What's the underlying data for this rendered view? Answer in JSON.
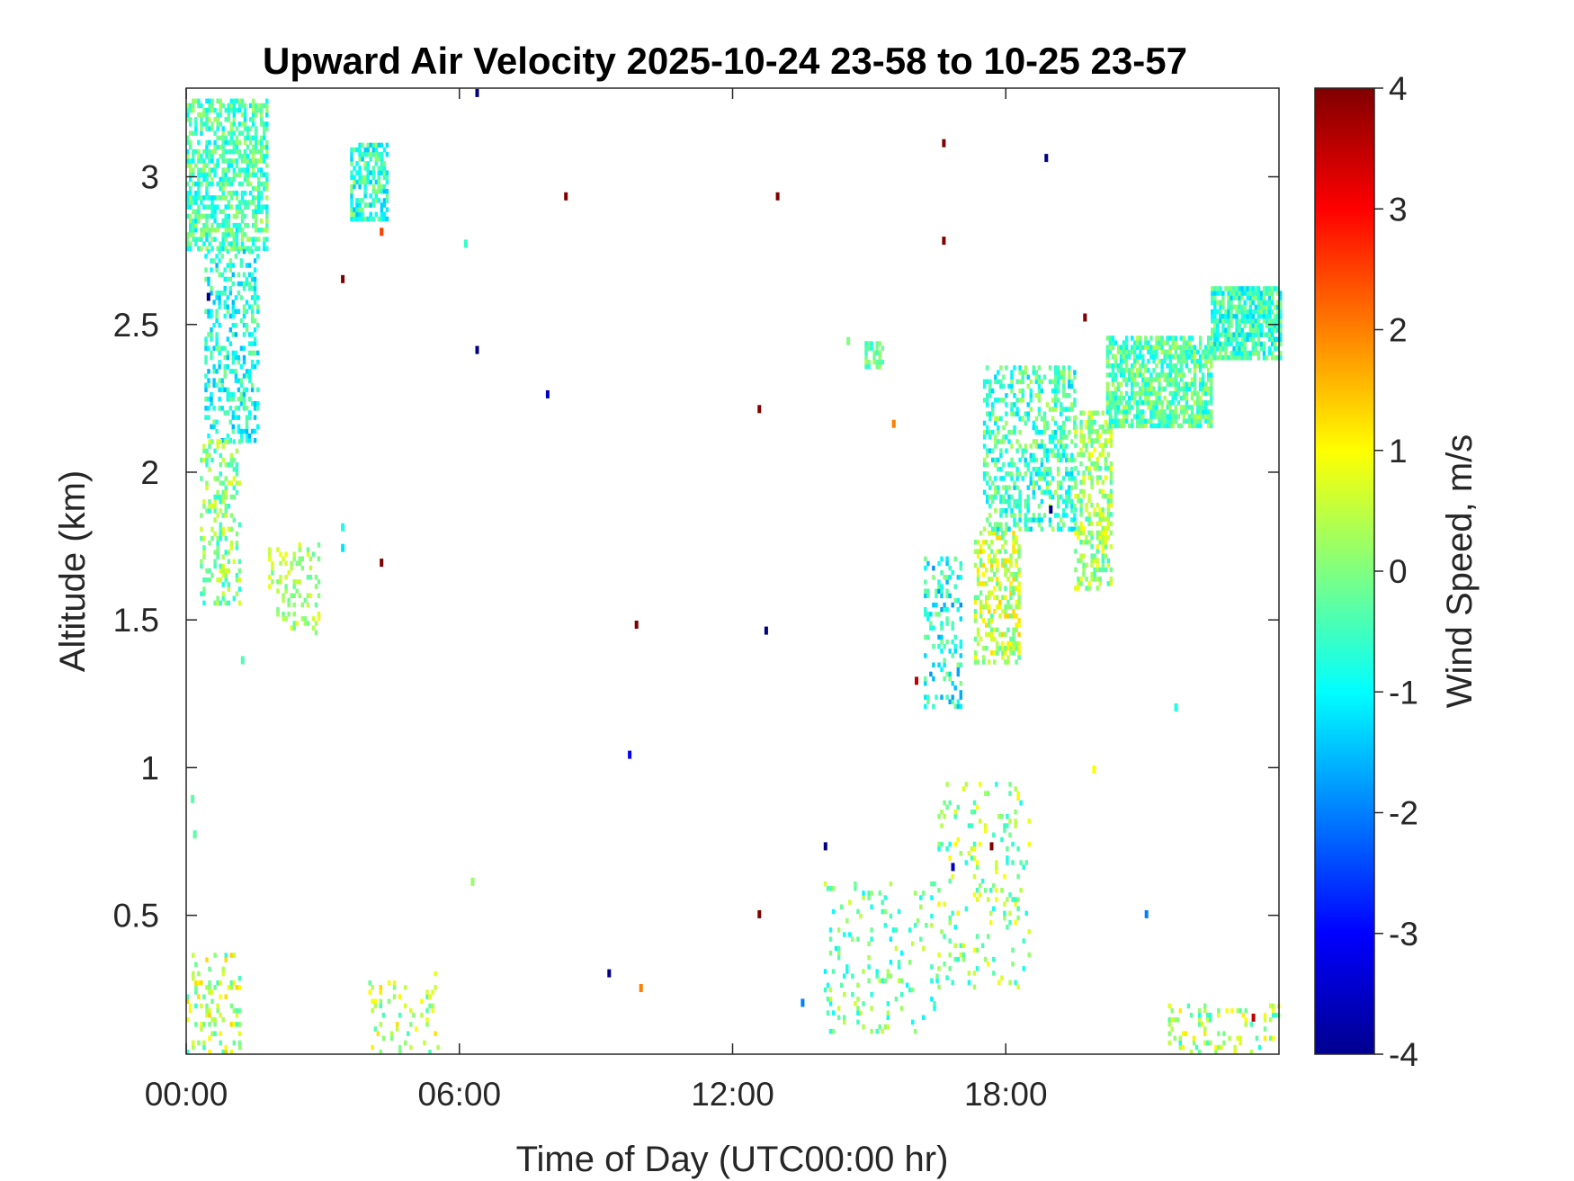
{
  "chart_data": {
    "type": "heatmap",
    "title": "Upward Air Velocity 2025-10-24 23-58 to 10-25 23-57",
    "xlabel": "Time of Day (UTC00:00 hr)",
    "ylabel": "Altitude (km)",
    "xlim": [
      0,
      24
    ],
    "ylim": [
      0.03,
      3.3
    ],
    "xticks": [
      0,
      6,
      12,
      18
    ],
    "xtick_labels": [
      "00:00",
      "06:00",
      "12:00",
      "18:00"
    ],
    "yticks": [
      0.5,
      1,
      1.5,
      2,
      2.5,
      3
    ],
    "ytick_labels": [
      "0.5",
      "1",
      "1.5",
      "2",
      "2.5",
      "3"
    ],
    "colorbar": {
      "label": "Wind Speed, m/s",
      "colormap": "jet",
      "clim": [
        -4,
        4
      ],
      "ticks": [
        -4,
        -3,
        -2,
        -1,
        0,
        1,
        2,
        3,
        4
      ],
      "tick_labels": [
        "-4",
        "-3",
        "-2",
        "-1",
        "0",
        "1",
        "2",
        "3",
        "4"
      ]
    },
    "regions": [
      {
        "name": "early-upper-cloud",
        "t": [
          0.0,
          1.8
        ],
        "z": [
          2.75,
          3.25
        ],
        "mean": -0.4,
        "spread": 0.8,
        "density": 0.6
      },
      {
        "name": "early-column",
        "t": [
          0.4,
          1.6
        ],
        "z": [
          2.1,
          2.75
        ],
        "mean": -0.8,
        "spread": 0.8,
        "density": 0.35
      },
      {
        "name": "early-low-column",
        "t": [
          0.3,
          1.2
        ],
        "z": [
          1.55,
          2.1
        ],
        "mean": 0.0,
        "spread": 0.8,
        "density": 0.3
      },
      {
        "name": "early-trail",
        "t": [
          1.8,
          2.9
        ],
        "z": [
          1.45,
          1.75
        ],
        "mean": 0.3,
        "spread": 0.6,
        "density": 0.2
      },
      {
        "name": "cell-0400",
        "t": [
          3.6,
          4.4
        ],
        "z": [
          2.85,
          3.1
        ],
        "mean": -0.6,
        "spread": 0.9,
        "density": 0.6
      },
      {
        "name": "cell-1500",
        "t": [
          14.9,
          15.3
        ],
        "z": [
          2.35,
          2.43
        ],
        "mean": -0.2,
        "spread": 0.6,
        "density": 0.6
      },
      {
        "name": "rising-1630",
        "t": [
          16.2,
          17.0
        ],
        "z": [
          1.2,
          1.7
        ],
        "mean": -0.9,
        "spread": 1.0,
        "density": 0.3
      },
      {
        "name": "rising-1745",
        "t": [
          17.3,
          18.3
        ],
        "z": [
          1.35,
          1.8
        ],
        "mean": 0.5,
        "spread": 0.9,
        "density": 0.45
      },
      {
        "name": "rising-1830",
        "t": [
          17.5,
          19.5
        ],
        "z": [
          1.8,
          2.35
        ],
        "mean": -0.5,
        "spread": 0.9,
        "density": 0.4
      },
      {
        "name": "rising-2000",
        "t": [
          19.5,
          20.3
        ],
        "z": [
          1.6,
          2.2
        ],
        "mean": 0.2,
        "spread": 0.8,
        "density": 0.45
      },
      {
        "name": "upper-layer-2030",
        "t": [
          20.2,
          22.5
        ],
        "z": [
          2.15,
          2.45
        ],
        "mean": -0.3,
        "spread": 0.8,
        "density": 0.7
      },
      {
        "name": "upper-layer-2330",
        "t": [
          22.5,
          24.0
        ],
        "z": [
          2.38,
          2.62
        ],
        "mean": -0.6,
        "spread": 0.8,
        "density": 0.8
      },
      {
        "name": "surface-layer-1",
        "t": [
          0.0,
          1.2
        ],
        "z": [
          0.03,
          0.36
        ],
        "mean": 0.4,
        "spread": 1.0,
        "density": 0.2
      },
      {
        "name": "surface-layer-2",
        "t": [
          4.0,
          5.5
        ],
        "z": [
          0.03,
          0.3
        ],
        "mean": 0.3,
        "spread": 1.0,
        "density": 0.1
      },
      {
        "name": "surface-layer-3",
        "t": [
          14.0,
          16.5
        ],
        "z": [
          0.1,
          0.6
        ],
        "mean": -0.2,
        "spread": 0.9,
        "density": 0.12
      },
      {
        "name": "surface-layer-4",
        "t": [
          16.5,
          18.5
        ],
        "z": [
          0.25,
          0.95
        ],
        "mean": 0.1,
        "spread": 1.0,
        "density": 0.1
      },
      {
        "name": "surface-layer-5",
        "t": [
          21.5,
          24.0
        ],
        "z": [
          0.03,
          0.2
        ],
        "mean": 0.2,
        "spread": 1.0,
        "density": 0.2
      }
    ],
    "points": [
      {
        "t": 6.35,
        "z": 3.27,
        "v": -4.0
      },
      {
        "t": 8.3,
        "z": 2.92,
        "v": 4.0
      },
      {
        "t": 12.95,
        "z": 2.92,
        "v": 4.0
      },
      {
        "t": 16.6,
        "z": 3.1,
        "v": 4.0
      },
      {
        "t": 18.85,
        "z": 3.05,
        "v": -4.0
      },
      {
        "t": 16.6,
        "z": 2.77,
        "v": 4.0
      },
      {
        "t": 3.4,
        "z": 2.64,
        "v": 4.0
      },
      {
        "t": 0.45,
        "z": 2.58,
        "v": -4.0
      },
      {
        "t": 6.35,
        "z": 2.4,
        "v": -4.0
      },
      {
        "t": 7.9,
        "z": 2.25,
        "v": -3.5
      },
      {
        "t": 12.55,
        "z": 2.2,
        "v": 4.0
      },
      {
        "t": 15.5,
        "z": 2.15,
        "v": 2.0
      },
      {
        "t": 19.7,
        "z": 2.51,
        "v": 4.0
      },
      {
        "t": 18.95,
        "z": 1.86,
        "v": -4.0
      },
      {
        "t": 4.25,
        "z": 1.68,
        "v": 4.0
      },
      {
        "t": 9.85,
        "z": 1.47,
        "v": 4.0
      },
      {
        "t": 12.7,
        "z": 1.45,
        "v": -4.0
      },
      {
        "t": 16.0,
        "z": 1.28,
        "v": 3.5
      },
      {
        "t": 9.7,
        "z": 1.03,
        "v": -3.0
      },
      {
        "t": 14.0,
        "z": 0.72,
        "v": -4.0
      },
      {
        "t": 17.65,
        "z": 0.72,
        "v": 4.0
      },
      {
        "t": 16.8,
        "z": 0.65,
        "v": -3.5
      },
      {
        "t": 12.55,
        "z": 0.49,
        "v": 4.0
      },
      {
        "t": 21.05,
        "z": 0.49,
        "v": -2.0
      },
      {
        "t": 4.25,
        "z": 2.8,
        "v": 2.5
      },
      {
        "t": 6.1,
        "z": 2.76,
        "v": -0.6
      },
      {
        "t": 14.5,
        "z": 2.43,
        "v": 0.0
      },
      {
        "t": 23.4,
        "z": 0.14,
        "v": 3.5
      },
      {
        "t": 9.25,
        "z": 0.29,
        "v": -4.0
      },
      {
        "t": 9.95,
        "z": 0.24,
        "v": 2.0
      },
      {
        "t": 13.5,
        "z": 0.19,
        "v": -2.0
      },
      {
        "t": 19.9,
        "z": 0.98,
        "v": 1.0
      },
      {
        "t": 21.7,
        "z": 1.19,
        "v": -0.8
      },
      {
        "t": 6.25,
        "z": 0.6,
        "v": 0.2
      },
      {
        "t": 0.1,
        "z": 0.88,
        "v": -0.3
      },
      {
        "t": 0.15,
        "z": 0.76,
        "v": -0.3
      },
      {
        "t": 1.2,
        "z": 1.35,
        "v": -0.4
      },
      {
        "t": 3.4,
        "z": 1.8,
        "v": -0.8
      },
      {
        "t": 3.4,
        "z": 1.73,
        "v": -1.2
      }
    ]
  }
}
